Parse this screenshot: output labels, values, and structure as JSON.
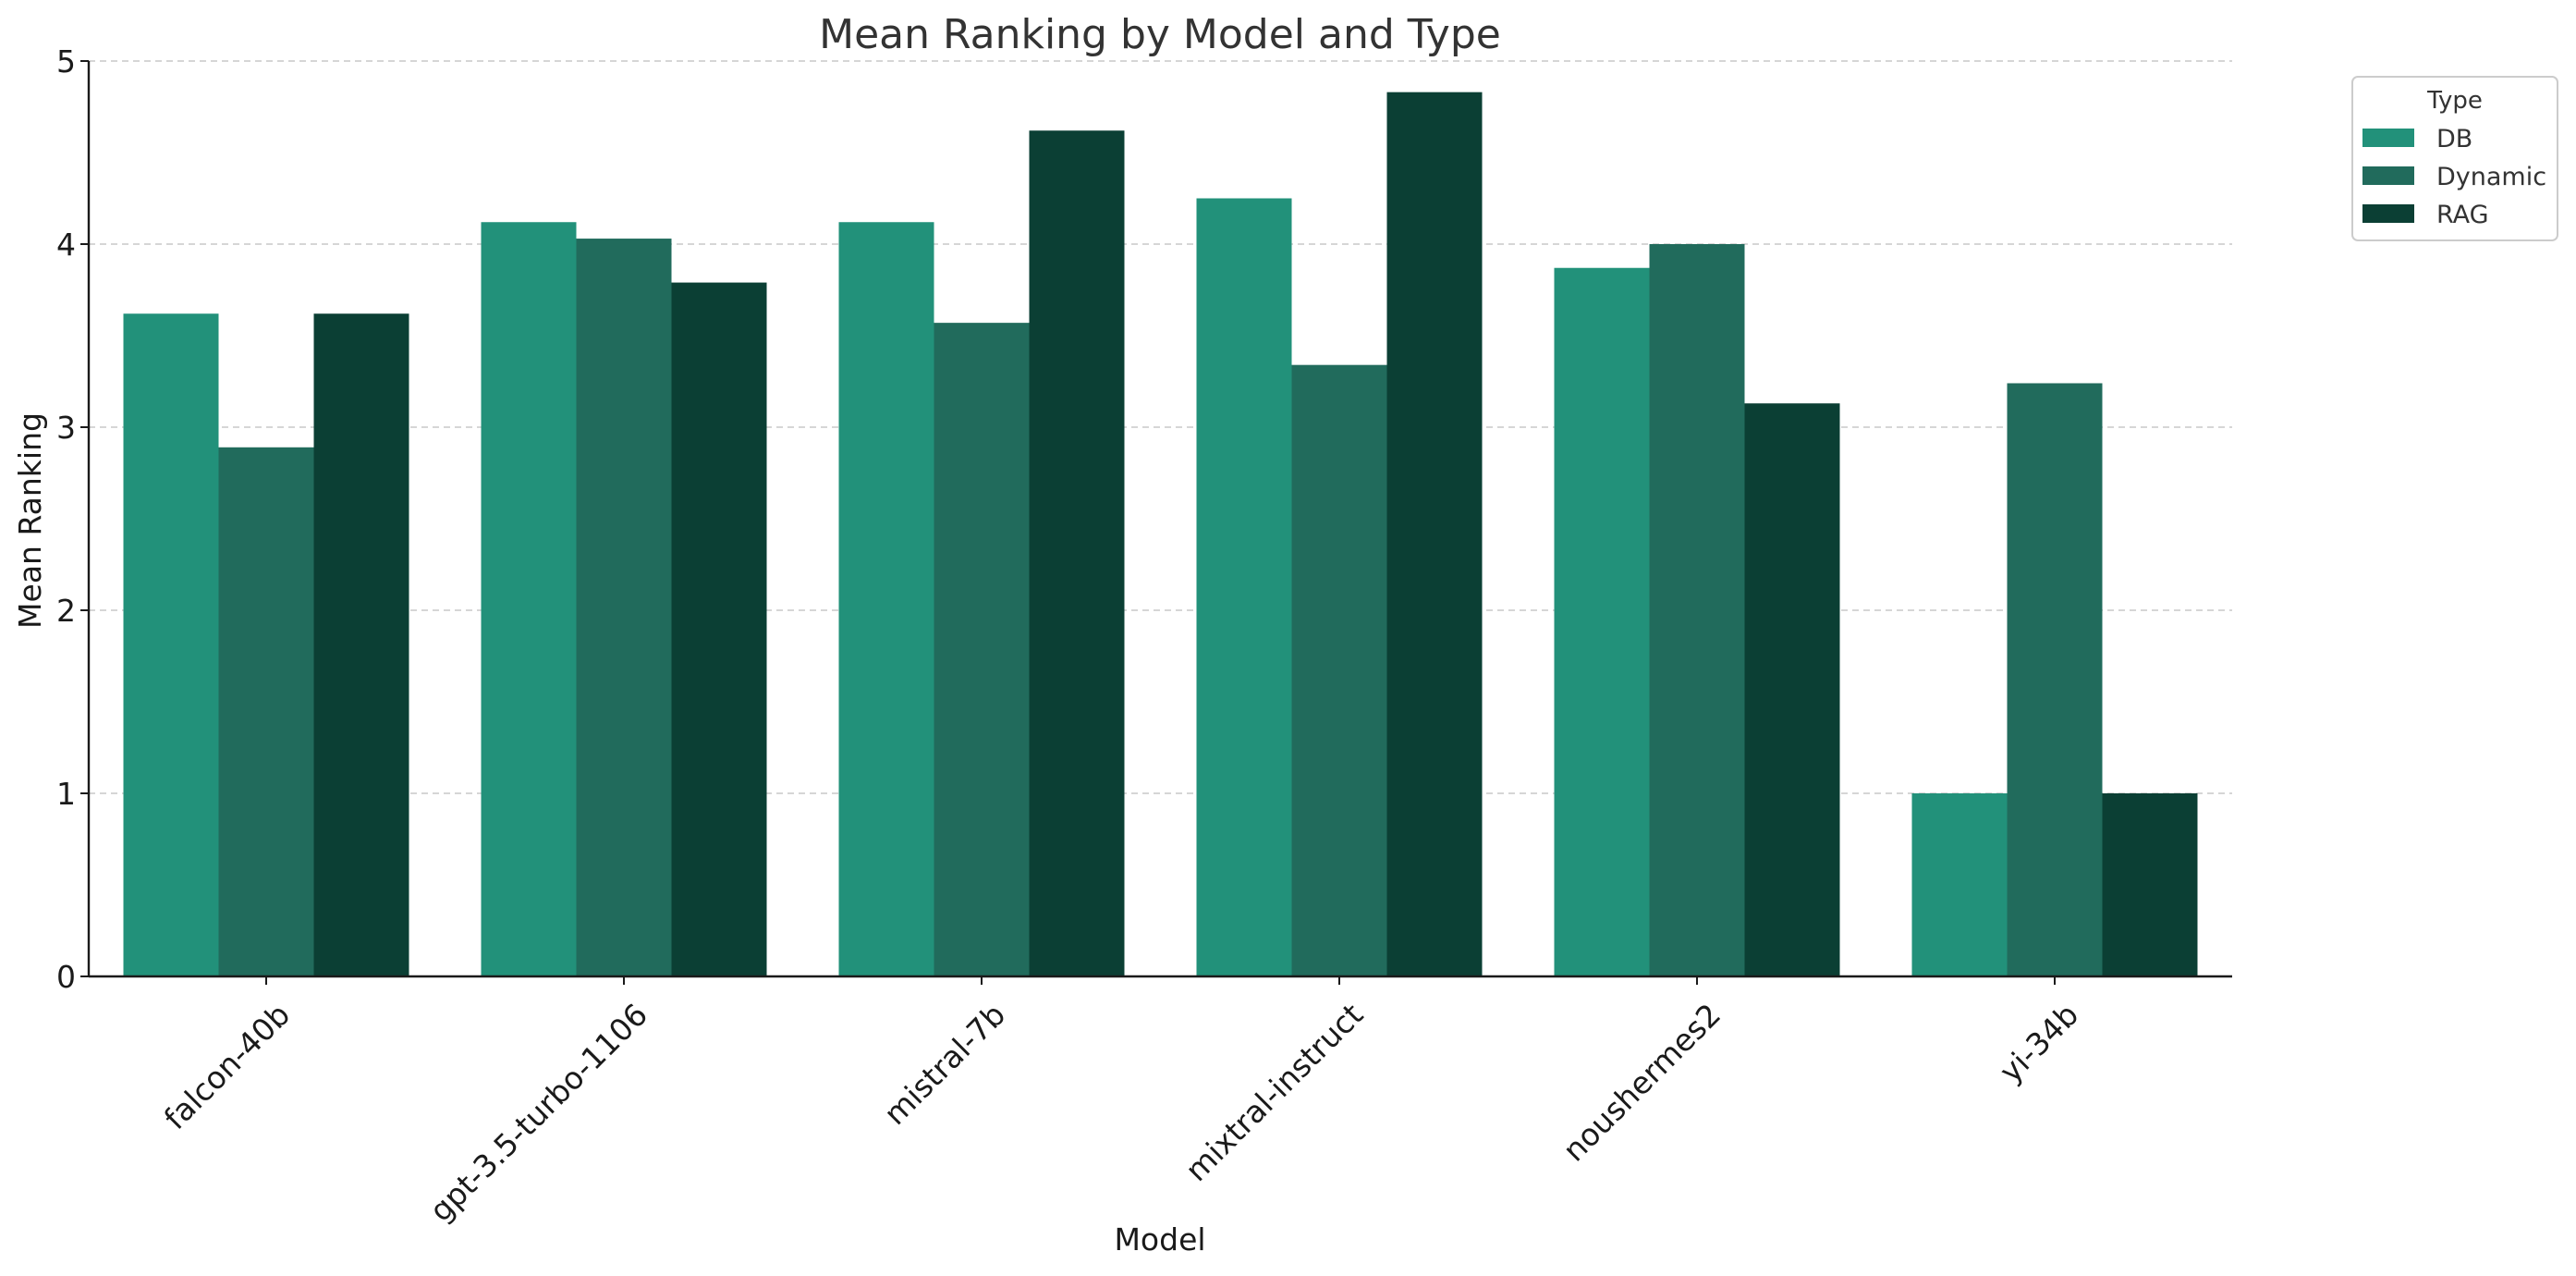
{
  "chart_data": {
    "type": "bar",
    "title": "Mean Ranking by Model and Type",
    "xlabel": "Model",
    "ylabel": "Mean Ranking",
    "categories": [
      "falcon-40b",
      "gpt-3.5-turbo-1106",
      "mistral-7b",
      "mixtral-instruct",
      "noushermes2",
      "yi-34b"
    ],
    "series": [
      {
        "name": "DB",
        "values": [
          3.62,
          4.12,
          4.12,
          4.25,
          3.87,
          1.0
        ],
        "color": "#22917a"
      },
      {
        "name": "Dynamic",
        "values": [
          2.89,
          4.03,
          3.57,
          3.34,
          4.0,
          3.24
        ],
        "color": "#216b5c"
      },
      {
        "name": "RAG",
        "values": [
          3.62,
          3.79,
          4.62,
          4.83,
          3.13,
          1.0
        ],
        "color": "#0b3f34"
      }
    ],
    "ylim": [
      0,
      5
    ],
    "yticks": [
      0,
      1,
      2,
      3,
      4,
      5
    ],
    "grid": "y-dashed",
    "legend": {
      "title": "Type",
      "placement": "outside-top-right"
    }
  }
}
